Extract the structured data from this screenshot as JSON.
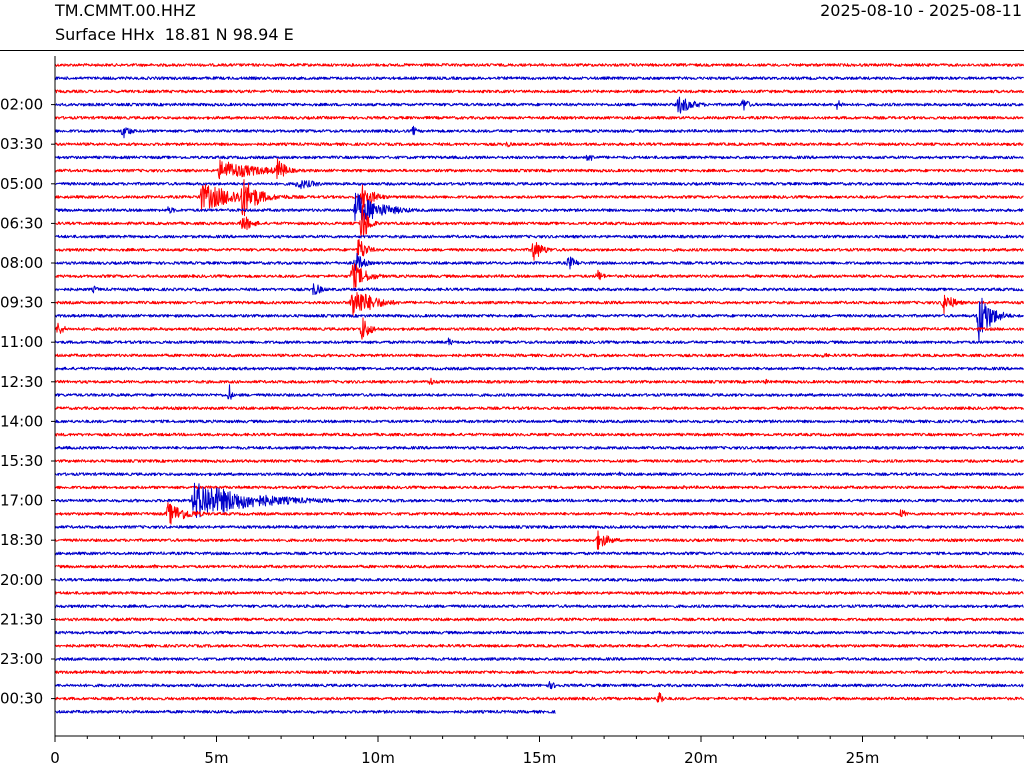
{
  "header": {
    "station": "TM.CMMT.00.HHZ",
    "location": "Surface HHx  18.81 N 98.94 E",
    "date_range": "2025-08-10 - 2025-08-11"
  },
  "colors": {
    "odd": "#ff0000",
    "even": "#0000cc",
    "axis": "#000000"
  },
  "chart_data": {
    "type": "helicorder",
    "rows": 50,
    "row_minutes": 30,
    "last_row_minutes": 15.5,
    "row_colors": [
      "red",
      "blue"
    ],
    "x": {
      "min": 0,
      "max": 30,
      "unit": "minutes",
      "ticks": [
        0,
        5,
        10,
        15,
        20,
        25
      ],
      "tick_labels": [
        "0",
        "5m",
        "10m",
        "15m",
        "20m",
        "25m"
      ],
      "minor_tick_step": 1
    },
    "y": {
      "tick_rows": [
        3,
        6,
        9,
        12,
        15,
        18,
        21,
        24,
        27,
        30,
        33,
        36,
        39,
        42,
        45,
        48
      ],
      "tick_labels": [
        "02:00",
        "03:30",
        "05:00",
        "06:30",
        "08:00",
        "09:30",
        "11:00",
        "12:30",
        "14:00",
        "15:30",
        "17:00",
        "18:30",
        "20:00",
        "21:30",
        "23:00",
        "00:30"
      ]
    },
    "events": [
      {
        "row": 3,
        "minute": 19.3,
        "amp": 10,
        "duration": 1.5
      },
      {
        "row": 3,
        "minute": 21.3,
        "amp": 8,
        "duration": 0.6
      },
      {
        "row": 3,
        "minute": 24.2,
        "amp": 6,
        "duration": 0.6
      },
      {
        "row": 5,
        "minute": 2.1,
        "amp": 8,
        "duration": 0.8
      },
      {
        "row": 5,
        "minute": 11.1,
        "amp": 6,
        "duration": 0.3
      },
      {
        "row": 6,
        "minute": 14.0,
        "amp": 4,
        "duration": 0.5
      },
      {
        "row": 7,
        "minute": 16.5,
        "amp": 5,
        "duration": 0.8
      },
      {
        "row": 8,
        "minute": 5.1,
        "amp": 11,
        "duration": 4.0
      },
      {
        "row": 8,
        "minute": 6.9,
        "amp": 14,
        "duration": 0.8
      },
      {
        "row": 9,
        "minute": 7.5,
        "amp": 6,
        "duration": 2.0
      },
      {
        "row": 10,
        "minute": 4.5,
        "amp": 14,
        "duration": 4.5
      },
      {
        "row": 10,
        "minute": 5.8,
        "amp": 22,
        "duration": 1.5
      },
      {
        "row": 10,
        "minute": 9.5,
        "amp": 14,
        "duration": 1.2
      },
      {
        "row": 11,
        "minute": 9.3,
        "amp": 18,
        "duration": 2.5
      },
      {
        "row": 11,
        "minute": 3.5,
        "amp": 4,
        "duration": 1.0
      },
      {
        "row": 12,
        "minute": 5.8,
        "amp": 10,
        "duration": 1.0
      },
      {
        "row": 12,
        "minute": 9.5,
        "amp": 25,
        "duration": 0.6
      },
      {
        "row": 14,
        "minute": 9.4,
        "amp": 14,
        "duration": 0.8
      },
      {
        "row": 14,
        "minute": 14.8,
        "amp": 12,
        "duration": 1.0
      },
      {
        "row": 15,
        "minute": 9.3,
        "amp": 12,
        "duration": 0.8
      },
      {
        "row": 15,
        "minute": 15.9,
        "amp": 8,
        "duration": 0.8
      },
      {
        "row": 16,
        "minute": 9.2,
        "amp": 15,
        "duration": 1.4
      },
      {
        "row": 16,
        "minute": 16.8,
        "amp": 7,
        "duration": 0.6
      },
      {
        "row": 17,
        "minute": 8.0,
        "amp": 8,
        "duration": 0.8
      },
      {
        "row": 17,
        "minute": 1.2,
        "amp": 4,
        "duration": 0.6
      },
      {
        "row": 18,
        "minute": 9.2,
        "amp": 18,
        "duration": 2.0
      },
      {
        "row": 18,
        "minute": 27.5,
        "amp": 12,
        "duration": 1.0
      },
      {
        "row": 19,
        "minute": 28.6,
        "amp": 28,
        "duration": 1.2
      },
      {
        "row": 20,
        "minute": 0.1,
        "amp": 8,
        "duration": 0.6
      },
      {
        "row": 20,
        "minute": 9.5,
        "amp": 14,
        "duration": 0.8
      },
      {
        "row": 21,
        "minute": 12.2,
        "amp": 6,
        "duration": 0.3
      },
      {
        "row": 22,
        "minute": 23.8,
        "amp": 5,
        "duration": 0.3
      },
      {
        "row": 24,
        "minute": 11.6,
        "amp": 6,
        "duration": 0.4
      },
      {
        "row": 24,
        "minute": 22.0,
        "amp": 3,
        "duration": 0.6
      },
      {
        "row": 25,
        "minute": 5.4,
        "amp": 12,
        "duration": 0.2
      },
      {
        "row": 31,
        "minute": 17.5,
        "amp": 4,
        "duration": 0.3
      },
      {
        "row": 32,
        "minute": 19.5,
        "amp": 3,
        "duration": 0.4
      },
      {
        "row": 33,
        "minute": 4.3,
        "amp": 20,
        "duration": 5.5
      },
      {
        "row": 34,
        "minute": 3.5,
        "amp": 12,
        "duration": 2.0
      },
      {
        "row": 34,
        "minute": 26.2,
        "amp": 6,
        "duration": 0.5
      },
      {
        "row": 35,
        "minute": 12.8,
        "amp": 3,
        "duration": 0.3
      },
      {
        "row": 36,
        "minute": 16.8,
        "amp": 10,
        "duration": 1.2
      },
      {
        "row": 38,
        "minute": 3.1,
        "amp": 3,
        "duration": 0.3
      },
      {
        "row": 42,
        "minute": 27.6,
        "amp": 4,
        "duration": 0.4
      },
      {
        "row": 47,
        "minute": 15.3,
        "amp": 4,
        "duration": 1.2
      },
      {
        "row": 48,
        "minute": 18.7,
        "amp": 12,
        "duration": 0.3
      }
    ]
  }
}
